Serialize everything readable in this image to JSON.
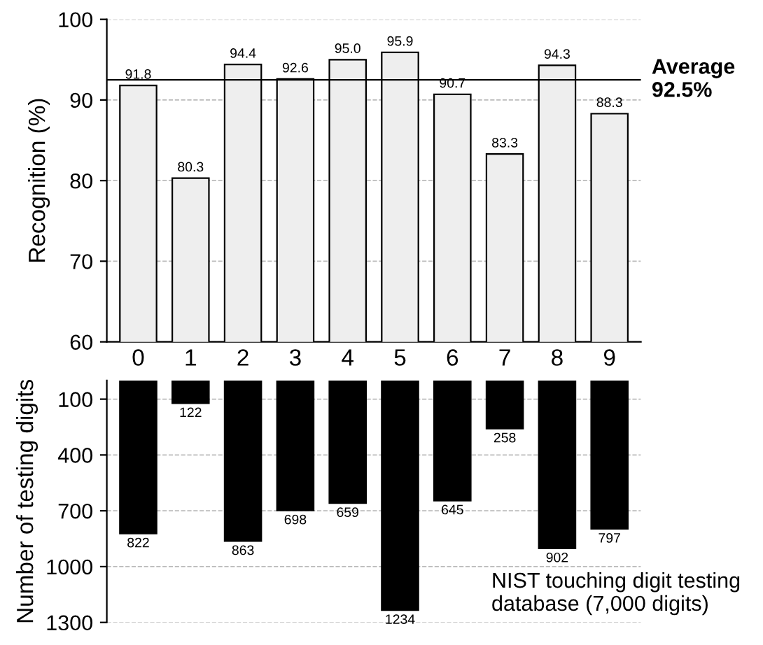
{
  "chart_data": [
    {
      "type": "bar",
      "ylabel": "Recognition (%)",
      "categories": [
        "0",
        "1",
        "2",
        "3",
        "4",
        "5",
        "6",
        "7",
        "8",
        "9"
      ],
      "series": [
        {
          "color": "#eeeeee",
          "values": [
            91.8,
            80.3,
            94.4,
            92.6,
            95.0,
            95.9,
            90.7,
            83.3,
            94.3,
            88.3
          ]
        }
      ],
      "value_labels": [
        "91.8",
        "80.3",
        "94.4",
        "92.6",
        "95.0",
        "95.9",
        "90.7",
        "83.3",
        "94.3",
        "88.3"
      ],
      "ylim": [
        60,
        100
      ],
      "yticks": [
        60,
        70,
        80,
        90,
        100
      ],
      "grid": "y",
      "ref_lines": [
        {
          "axis": "y",
          "value": 92.5,
          "label": "Average\n92.5%",
          "color": "#000000"
        }
      ]
    },
    {
      "type": "bar",
      "ylabel": "Number of testing digits",
      "categories": [
        null,
        null,
        null,
        null,
        null,
        null,
        null,
        null,
        null,
        null
      ],
      "series": [
        {
          "color": "#000000",
          "values": [
            822,
            122,
            863,
            698,
            659,
            1234,
            645,
            258,
            902,
            797
          ]
        }
      ],
      "data_labels": true,
      "ylim": [
        1300,
        0
      ],
      "yticks": [
        100,
        400,
        700,
        1000,
        1300
      ],
      "grid": "y",
      "tick_labels": "y",
      "annotations": [
        "NIST touching digit testing\ndatabase (7,000 digits)"
      ]
    }
  ]
}
